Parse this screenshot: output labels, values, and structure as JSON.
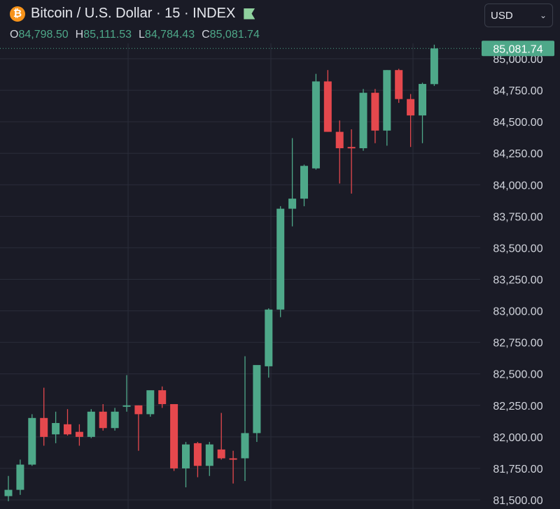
{
  "header": {
    "icon_symbol": "₿",
    "title": "Bitcoin / U.S. Dollar · 15 · INDEX"
  },
  "ohlc": {
    "o_label": "O",
    "o_value": "84,798.50",
    "h_label": "H",
    "h_value": "85,111.53",
    "l_label": "L",
    "l_value": "84,784.43",
    "c_label": "C",
    "c_value": "85,081.74"
  },
  "currency": {
    "selected": "USD"
  },
  "colors": {
    "up": "#4ea889",
    "down": "#e5484d",
    "background": "#1a1b26",
    "grid": "#2a2d3a"
  },
  "chart_data": {
    "type": "candlestick",
    "y_ticks": [
      81500,
      81750,
      82000,
      82250,
      82500,
      82750,
      83000,
      83250,
      83500,
      83750,
      84000,
      84250,
      84500,
      84750,
      85000
    ],
    "y_tick_labels": [
      "81,500.00",
      "81,750.00",
      "82,000.00",
      "82,250.00",
      "82,500.00",
      "82,750.00",
      "83,000.00",
      "83,250.00",
      "83,500.00",
      "83,750.00",
      "84,000.00",
      "84,250.00",
      "84,500.00",
      "84,750.00",
      "85,000.00"
    ],
    "ylim": [
      81480,
      85130
    ],
    "last_price": 85081.74,
    "last_price_label": "85,081.74",
    "grid": true,
    "candles": [
      {
        "o": 81530,
        "h": 81690,
        "l": 81490,
        "c": 81580
      },
      {
        "o": 81580,
        "h": 81820,
        "l": 81540,
        "c": 81780
      },
      {
        "o": 81780,
        "h": 82180,
        "l": 81770,
        "c": 82150
      },
      {
        "o": 82150,
        "h": 82390,
        "l": 81930,
        "c": 82000
      },
      {
        "o": 82020,
        "h": 82200,
        "l": 81950,
        "c": 82110
      },
      {
        "o": 82100,
        "h": 82220,
        "l": 82010,
        "c": 82020
      },
      {
        "o": 82040,
        "h": 82100,
        "l": 81930,
        "c": 82000
      },
      {
        "o": 82000,
        "h": 82220,
        "l": 81990,
        "c": 82200
      },
      {
        "o": 82200,
        "h": 82260,
        "l": 82050,
        "c": 82070
      },
      {
        "o": 82070,
        "h": 82230,
        "l": 82050,
        "c": 82200
      },
      {
        "o": 82240,
        "h": 82490,
        "l": 82200,
        "c": 82250
      },
      {
        "o": 82250,
        "h": 82250,
        "l": 81890,
        "c": 82180
      },
      {
        "o": 82180,
        "h": 82360,
        "l": 82160,
        "c": 82370
      },
      {
        "o": 82370,
        "h": 82400,
        "l": 82230,
        "c": 82260
      },
      {
        "o": 82260,
        "h": 82260,
        "l": 81730,
        "c": 81750
      },
      {
        "o": 81750,
        "h": 81960,
        "l": 81600,
        "c": 81940
      },
      {
        "o": 81950,
        "h": 81960,
        "l": 81680,
        "c": 81770
      },
      {
        "o": 81770,
        "h": 81960,
        "l": 81690,
        "c": 81940
      },
      {
        "o": 81900,
        "h": 82190,
        "l": 81820,
        "c": 81830
      },
      {
        "o": 81830,
        "h": 81890,
        "l": 81630,
        "c": 81820
      },
      {
        "o": 81830,
        "h": 82640,
        "l": 81650,
        "c": 82030
      },
      {
        "o": 82030,
        "h": 82560,
        "l": 81960,
        "c": 82570
      },
      {
        "o": 82560,
        "h": 83020,
        "l": 82470,
        "c": 83010
      },
      {
        "o": 83010,
        "h": 83830,
        "l": 82950,
        "c": 83810
      },
      {
        "o": 83810,
        "h": 84370,
        "l": 83670,
        "c": 83890
      },
      {
        "o": 83890,
        "h": 84160,
        "l": 83830,
        "c": 84150
      },
      {
        "o": 84130,
        "h": 84880,
        "l": 84120,
        "c": 84820
      },
      {
        "o": 84820,
        "h": 84910,
        "l": 84420,
        "c": 84420
      },
      {
        "o": 84420,
        "h": 84510,
        "l": 84010,
        "c": 84290
      },
      {
        "o": 84300,
        "h": 84440,
        "l": 83930,
        "c": 84290
      },
      {
        "o": 84290,
        "h": 84760,
        "l": 84270,
        "c": 84730
      },
      {
        "o": 84730,
        "h": 84760,
        "l": 84330,
        "c": 84430
      },
      {
        "o": 84430,
        "h": 84910,
        "l": 84310,
        "c": 84910
      },
      {
        "o": 84910,
        "h": 84920,
        "l": 84650,
        "c": 84680
      },
      {
        "o": 84680,
        "h": 84720,
        "l": 84300,
        "c": 84550
      },
      {
        "o": 84550,
        "h": 84810,
        "l": 84330,
        "c": 84800
      },
      {
        "o": 84798.5,
        "h": 85111.53,
        "l": 84784.43,
        "c": 85081.74
      }
    ]
  }
}
